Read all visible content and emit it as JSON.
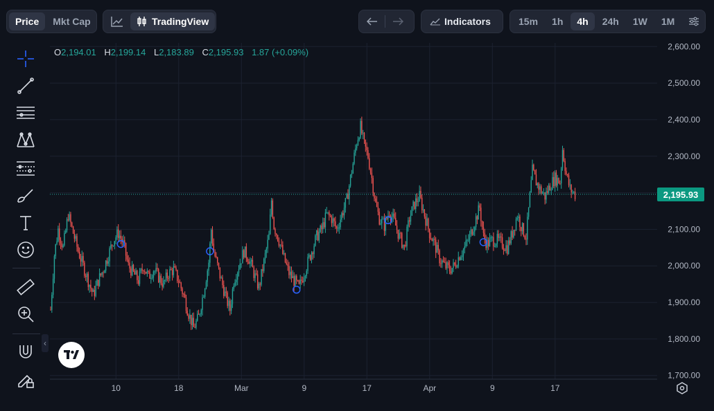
{
  "header": {
    "mode_tabs": [
      {
        "label": "Price",
        "active": true
      },
      {
        "label": "Mkt Cap",
        "active": false
      }
    ],
    "chart_type": {
      "icon": "line-chart-icon",
      "label": "TradingView",
      "tv_icon": "candlestick-icon"
    },
    "nav": {
      "back_icon": "arrow-left-icon",
      "forward_icon": "arrow-right-icon"
    },
    "indicators_label": "Indicators",
    "intervals": [
      "15m",
      "1h",
      "4h",
      "24h",
      "1W",
      "1M"
    ],
    "active_interval": "4h",
    "settings_icon": "sliders-icon"
  },
  "ohlc": {
    "o_key": "O",
    "o_val": "2,194.01",
    "h_key": "H",
    "h_val": "2,199.14",
    "l_key": "L",
    "l_val": "2,183.89",
    "c_key": "C",
    "c_val": "2,195.93",
    "change": "1.87 (+0.09%)"
  },
  "tools": [
    "crosshair-icon",
    "trendline-icon",
    "horizontal-lines-icon",
    "pattern-icon",
    "fib-icon",
    "brush-icon",
    "text-icon",
    "emoji-icon",
    "ruler-icon",
    "zoom-in-icon",
    "magnet-icon",
    "lock-pencil-icon"
  ],
  "current_price_label": "2,195.93",
  "colors": {
    "up": "#26a69a",
    "down": "#ef5350",
    "grid": "#1c2230",
    "price_tag": "#0b9981",
    "marker": "#2962ff"
  },
  "chart_data": {
    "type": "candlestick",
    "title": "",
    "ylabel": "",
    "xlabel": "",
    "ylim": [
      1690,
      2610
    ],
    "y_ticks": [
      "2,600.00",
      "2,500.00",
      "2,400.00",
      "2,300.00",
      "2,200.00",
      "2,100.00",
      "2,000.00",
      "1,900.00",
      "1,800.00",
      "1,700.00"
    ],
    "y_tick_values": [
      2600,
      2500,
      2400,
      2300,
      2200,
      2100,
      2000,
      1900,
      1800,
      1700
    ],
    "x_ticks": [
      "10",
      "18",
      "Mar",
      "9",
      "17",
      "Apr",
      "9",
      "17"
    ],
    "x_tick_index": [
      30,
      80,
      130,
      180,
      230,
      280,
      330,
      380
    ],
    "current_price": 2195.93,
    "markers_at_index": [
      56,
      127,
      196,
      269,
      345
    ],
    "series": [
      {
        "name": "",
        "close_path": [
          [
            0,
            1880
          ],
          [
            3,
            2030
          ],
          [
            6,
            2100
          ],
          [
            10,
            2050
          ],
          [
            14,
            2140
          ],
          [
            18,
            2090
          ],
          [
            22,
            2040
          ],
          [
            26,
            2000
          ],
          [
            30,
            1960
          ],
          [
            34,
            1920
          ],
          [
            38,
            1960
          ],
          [
            42,
            1990
          ],
          [
            46,
            2030
          ],
          [
            50,
            2070
          ],
          [
            54,
            2090
          ],
          [
            58,
            2060
          ],
          [
            62,
            2000
          ],
          [
            66,
            1980
          ],
          [
            70,
            1960
          ],
          [
            74,
            2000
          ],
          [
            78,
            1970
          ],
          [
            82,
            1990
          ],
          [
            86,
            1970
          ],
          [
            90,
            1950
          ],
          [
            94,
            1980
          ],
          [
            98,
            1990
          ],
          [
            102,
            1960
          ],
          [
            106,
            1920
          ],
          [
            110,
            1870
          ],
          [
            114,
            1830
          ],
          [
            118,
            1860
          ],
          [
            122,
            1930
          ],
          [
            126,
            2010
          ],
          [
            128,
            2100
          ],
          [
            130,
            2040
          ],
          [
            133,
            2000
          ],
          [
            136,
            1960
          ],
          [
            140,
            1910
          ],
          [
            143,
            1880
          ],
          [
            146,
            1960
          ],
          [
            150,
            2000
          ],
          [
            154,
            2040
          ],
          [
            158,
            2020
          ],
          [
            162,
            1980
          ],
          [
            166,
            1940
          ],
          [
            170,
            2010
          ],
          [
            174,
            2080
          ],
          [
            176,
            2180
          ],
          [
            178,
            2110
          ],
          [
            182,
            2070
          ],
          [
            186,
            2020
          ],
          [
            190,
            1980
          ],
          [
            194,
            1960
          ],
          [
            198,
            1940
          ],
          [
            200,
            1960
          ],
          [
            204,
            2000
          ],
          [
            208,
            2040
          ],
          [
            212,
            2080
          ],
          [
            216,
            2100
          ],
          [
            220,
            2140
          ],
          [
            224,
            2130
          ],
          [
            228,
            2100
          ],
          [
            232,
            2140
          ],
          [
            236,
            2180
          ],
          [
            240,
            2260
          ],
          [
            244,
            2340
          ],
          [
            247,
            2380
          ],
          [
            250,
            2330
          ],
          [
            253,
            2300
          ],
          [
            256,
            2240
          ],
          [
            259,
            2170
          ],
          [
            262,
            2130
          ],
          [
            266,
            2110
          ],
          [
            270,
            2150
          ],
          [
            274,
            2120
          ],
          [
            278,
            2080
          ],
          [
            282,
            2050
          ],
          [
            286,
            2130
          ],
          [
            290,
            2170
          ],
          [
            294,
            2190
          ],
          [
            298,
            2140
          ],
          [
            302,
            2090
          ],
          [
            306,
            2060
          ],
          [
            310,
            2020
          ],
          [
            314,
            2000
          ],
          [
            318,
            1990
          ],
          [
            322,
            2000
          ],
          [
            326,
            2030
          ],
          [
            330,
            2050
          ],
          [
            334,
            2080
          ],
          [
            338,
            2120
          ],
          [
            342,
            2160
          ],
          [
            345,
            2080
          ],
          [
            348,
            2060
          ],
          [
            352,
            2070
          ],
          [
            356,
            2070
          ],
          [
            360,
            2060
          ],
          [
            364,
            2050
          ],
          [
            368,
            2090
          ],
          [
            372,
            2140
          ],
          [
            376,
            2100
          ],
          [
            379,
            2080
          ],
          [
            382,
            2190
          ],
          [
            384,
            2260
          ],
          [
            387,
            2230
          ],
          [
            390,
            2210
          ],
          [
            394,
            2190
          ],
          [
            398,
            2220
          ],
          [
            402,
            2240
          ],
          [
            406,
            2230
          ],
          [
            408,
            2320
          ],
          [
            411,
            2250
          ],
          [
            414,
            2210
          ],
          [
            418,
            2195
          ]
        ]
      }
    ]
  }
}
